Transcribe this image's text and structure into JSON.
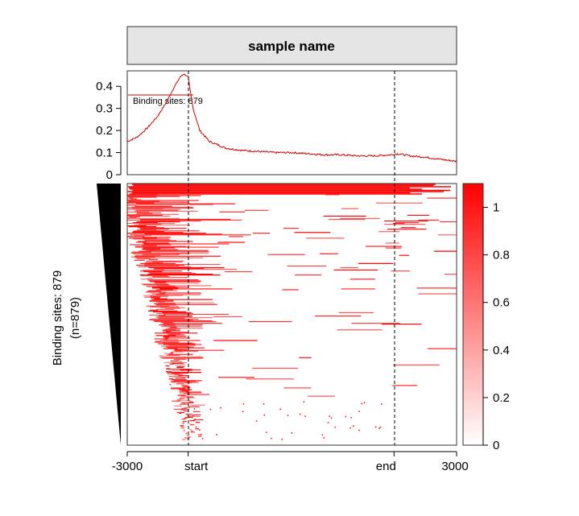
{
  "chart_data": {
    "type": "heatmap",
    "strip_title": "sample name",
    "profile": {
      "type": "line",
      "series_label": "Binding sites: 879",
      "color": "#cc0000",
      "yticks": [
        "0",
        "0.1",
        "0.2",
        "0.3",
        "0.4"
      ],
      "ylim": [
        0,
        0.47
      ],
      "x": [
        0,
        0.03,
        0.06,
        0.09,
        0.12,
        0.14,
        0.16,
        0.17,
        0.18,
        0.185,
        0.19,
        0.2,
        0.22,
        0.25,
        0.3,
        0.35,
        0.4,
        0.45,
        0.5,
        0.55,
        0.6,
        0.65,
        0.7,
        0.75,
        0.8,
        0.82,
        0.84,
        0.86,
        0.9,
        0.95,
        1.0
      ],
      "y": [
        0.15,
        0.17,
        0.21,
        0.26,
        0.33,
        0.39,
        0.44,
        0.455,
        0.45,
        0.44,
        0.39,
        0.3,
        0.2,
        0.15,
        0.12,
        0.11,
        0.105,
        0.1,
        0.1,
        0.095,
        0.09,
        0.09,
        0.085,
        0.085,
        0.09,
        0.095,
        0.09,
        0.085,
        0.08,
        0.07,
        0.06
      ]
    },
    "heatmap": {
      "ylabel_line1": "Binding sites: 879",
      "ylabel_line2": "(n=879)",
      "n_rows": 879,
      "xticks": [
        "-3000",
        "start",
        "end",
        "3000"
      ],
      "feature_start_fraction": 0.185,
      "feature_end_fraction": 0.81,
      "color_low": "#ffffff",
      "color_high": "#ff0000"
    },
    "colorbar": {
      "ticks": [
        "0",
        "0.2",
        "0.4",
        "0.6",
        "0.8",
        "1"
      ],
      "range": [
        0,
        1.1
      ]
    }
  }
}
